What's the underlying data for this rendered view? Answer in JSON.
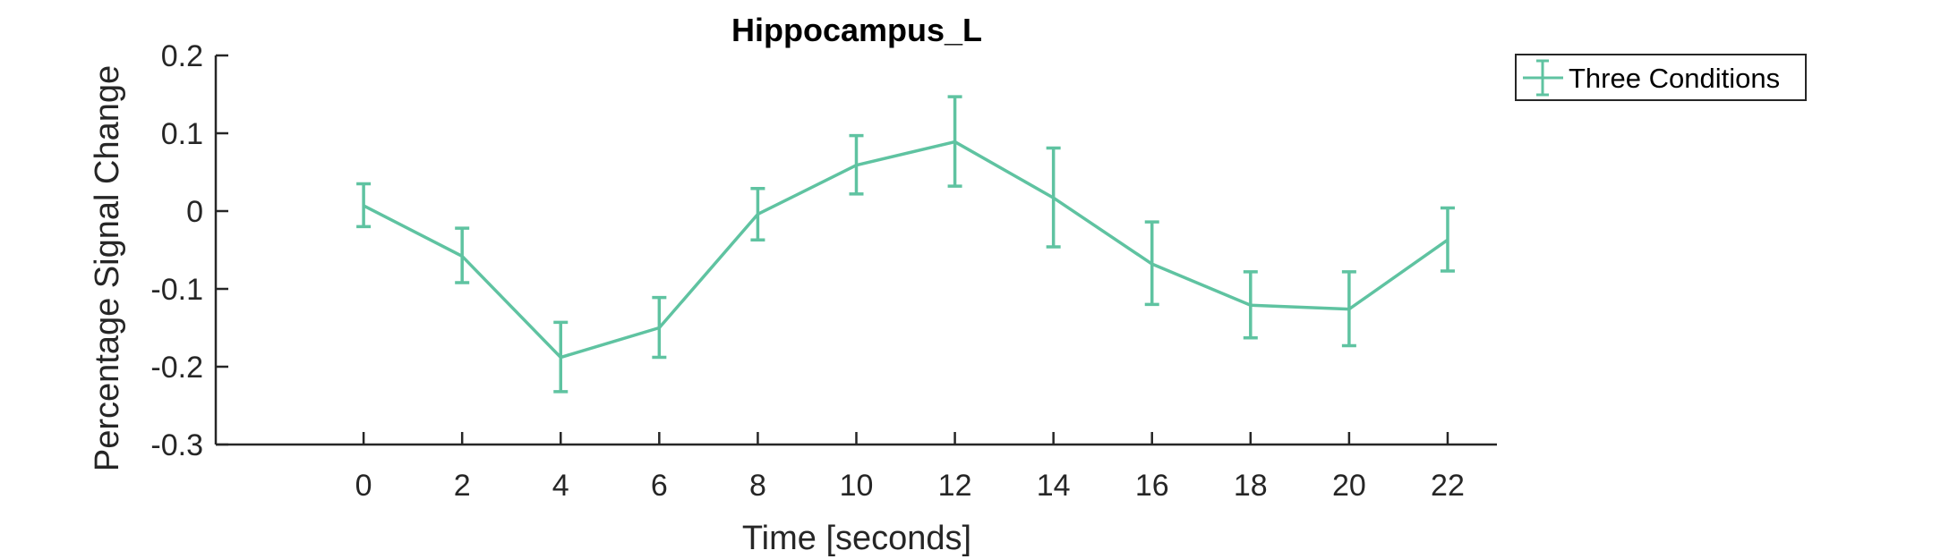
{
  "chart_data": {
    "type": "line",
    "title": "Hippocampus_L",
    "xlabel": "Time [seconds]",
    "ylabel": "Percentage Signal Change",
    "xlim": [
      -3,
      23
    ],
    "ylim": [
      -0.3,
      0.2
    ],
    "xticks": [
      0,
      2,
      4,
      6,
      8,
      10,
      12,
      14,
      16,
      18,
      20,
      22
    ],
    "yticks": [
      -0.3,
      -0.2,
      -0.1,
      0,
      0.1,
      0.2
    ],
    "ytick_labels": [
      "-0.3",
      "-0.2",
      "-0.1",
      "0",
      "0.1",
      "0.2"
    ],
    "grid": false,
    "legend_position": "outside-top-right",
    "series": [
      {
        "name": "Three Conditions",
        "color": "#5fc3a1",
        "x": [
          0,
          2,
          4,
          6,
          8,
          10,
          12,
          14,
          16,
          18,
          20,
          22
        ],
        "y": [
          0.007,
          -0.058,
          -0.188,
          -0.15,
          -0.004,
          0.059,
          0.089,
          0.017,
          -0.068,
          -0.121,
          -0.126,
          -0.037
        ],
        "err_low": [
          -0.02,
          -0.092,
          -0.232,
          -0.188,
          -0.037,
          0.022,
          0.032,
          -0.046,
          -0.12,
          -0.163,
          -0.173,
          -0.077
        ],
        "err_high": [
          0.035,
          -0.022,
          -0.143,
          -0.111,
          0.029,
          0.097,
          0.147,
          0.081,
          -0.014,
          -0.078,
          -0.078,
          0.004
        ]
      }
    ]
  }
}
